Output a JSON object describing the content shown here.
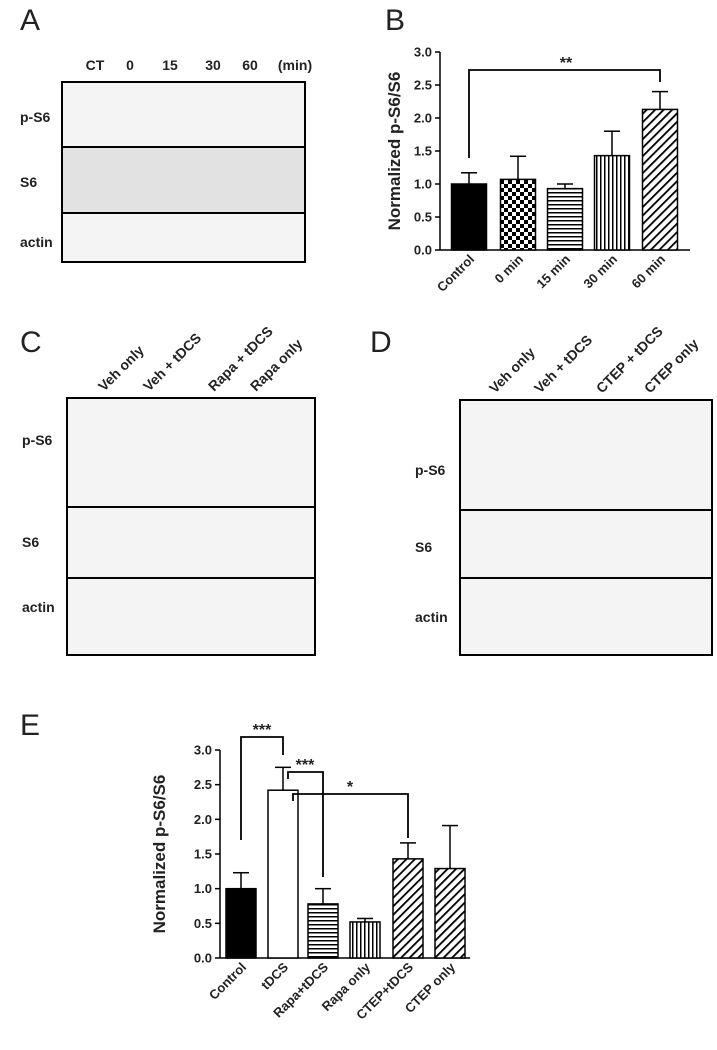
{
  "blots": [
    {
      "letter": "A",
      "lanes": [
        "CT",
        "0",
        "15",
        "30",
        "60"
      ],
      "unit": "(min)",
      "rows": [
        "p-S6",
        "S6",
        "actin"
      ]
    },
    {
      "letter": "C",
      "lanes": [
        "Veh only",
        "Veh + tDCS",
        "Rapa + tDCS",
        "Rapa only"
      ],
      "rows": [
        "p-S6",
        "S6",
        "actin"
      ]
    },
    {
      "letter": "D",
      "lanes": [
        "Veh only",
        "Veh + tDCS",
        "CTEP + tDCS",
        "CTEP only"
      ],
      "rows": [
        "p-S6",
        "S6",
        "actin"
      ]
    }
  ],
  "chart_data": [
    {
      "type": "bar",
      "letter": "B",
      "ylabel": "Normalized p-S6/S6",
      "categories": [
        "Control",
        "0  min",
        "15 min",
        "30 min",
        "60 min"
      ],
      "values": [
        1.0,
        1.07,
        0.93,
        1.43,
        2.13
      ],
      "errors": [
        0.17,
        0.35,
        0.07,
        0.37,
        0.27
      ],
      "patterns": [
        "solid",
        "checker",
        "hlines",
        "vlines",
        "diag"
      ],
      "color": "#000000",
      "ylim": [
        0,
        3
      ],
      "yticks": [
        {
          "value": 0,
          "label": "0.0"
        },
        {
          "value": 0.5,
          "label": "0.5"
        },
        {
          "value": 1,
          "label": "1.0"
        },
        {
          "value": 1.5,
          "label": "1.5"
        },
        {
          "value": 2,
          "label": "2.0"
        },
        {
          "value": 2.5,
          "label": "2.5"
        },
        {
          "value": 3,
          "label": "3.0"
        }
      ],
      "significance": [
        "**"
      ]
    },
    {
      "type": "bar",
      "letter": "E",
      "ylabel": "Normalized p-S6/S6",
      "categories": [
        "Control",
        "tDCS",
        "Rapa+tDCS",
        "Rapa only",
        "CTEP+tDCS",
        "CTEP only"
      ],
      "values": [
        1.0,
        2.42,
        0.78,
        0.52,
        1.43,
        1.29
      ],
      "errors": [
        0.23,
        0.33,
        0.22,
        0.05,
        0.23,
        0.62
      ],
      "patterns": [
        "solid",
        "white",
        "hlines",
        "vlines",
        "diag",
        "diag"
      ],
      "color": "#000000",
      "ylim": [
        0,
        3
      ],
      "yticks": [
        {
          "value": 0,
          "label": "0.0"
        },
        {
          "value": 0.5,
          "label": "0.5"
        },
        {
          "value": 1,
          "label": "1.0"
        },
        {
          "value": 1.5,
          "label": "1.5"
        },
        {
          "value": 2,
          "label": "2.0"
        },
        {
          "value": 2.5,
          "label": "2.5"
        },
        {
          "value": 3,
          "label": "3.0"
        }
      ],
      "significance": [
        "***",
        "***",
        "*"
      ]
    }
  ]
}
